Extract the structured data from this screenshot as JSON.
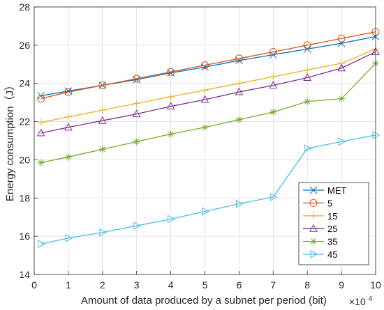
{
  "chart_data": {
    "type": "line",
    "title": "",
    "xlabel": "Amount of data produced by a subnet per period (bit)",
    "ylabel": "Energy consumption（J）",
    "x_multiplier_label": {
      "base": "×10",
      "exponent": "4"
    },
    "xlim": [
      0,
      10
    ],
    "ylim": [
      14,
      28
    ],
    "xticks": [
      "0",
      "1",
      "2",
      "3",
      "4",
      "5",
      "6",
      "7",
      "8",
      "9",
      "10"
    ],
    "yticks": [
      "14",
      "16",
      "18",
      "20",
      "22",
      "24",
      "26",
      "28"
    ],
    "grid": true,
    "legend_position": "bottom-right",
    "x": [
      0.2,
      1,
      2,
      3,
      4,
      5,
      6,
      7,
      8,
      9,
      10
    ],
    "series": [
      {
        "name": "MET",
        "color": "#0072BD",
        "marker": "x",
        "values": [
          23.35,
          23.6,
          23.9,
          24.2,
          24.55,
          24.85,
          25.2,
          25.5,
          25.8,
          26.1,
          26.45
        ]
      },
      {
        "name": "5",
        "color": "#D95319",
        "marker": "o",
        "values": [
          23.2,
          23.55,
          23.9,
          24.25,
          24.6,
          24.95,
          25.3,
          25.65,
          26.0,
          26.35,
          26.7
        ]
      },
      {
        "name": "15",
        "color": "#EDB120",
        "marker": "+",
        "values": [
          21.95,
          22.25,
          22.6,
          22.95,
          23.3,
          23.65,
          24.0,
          24.35,
          24.7,
          25.05,
          25.8
        ]
      },
      {
        "name": "25",
        "color": "#7E2F8E",
        "marker": "triangle-up",
        "values": [
          21.4,
          21.7,
          22.05,
          22.4,
          22.8,
          23.15,
          23.55,
          23.9,
          24.3,
          24.8,
          25.65
        ]
      },
      {
        "name": "35",
        "color": "#77AC30",
        "marker": "asterisk",
        "values": [
          19.85,
          20.15,
          20.55,
          20.95,
          21.35,
          21.7,
          22.1,
          22.5,
          23.05,
          23.2,
          25.05
        ]
      },
      {
        "name": "45",
        "color": "#4DBEEE",
        "marker": "triangle-right",
        "values": [
          15.6,
          15.9,
          16.2,
          16.55,
          16.9,
          17.3,
          17.7,
          18.05,
          20.6,
          20.95,
          21.3
        ]
      }
    ]
  }
}
